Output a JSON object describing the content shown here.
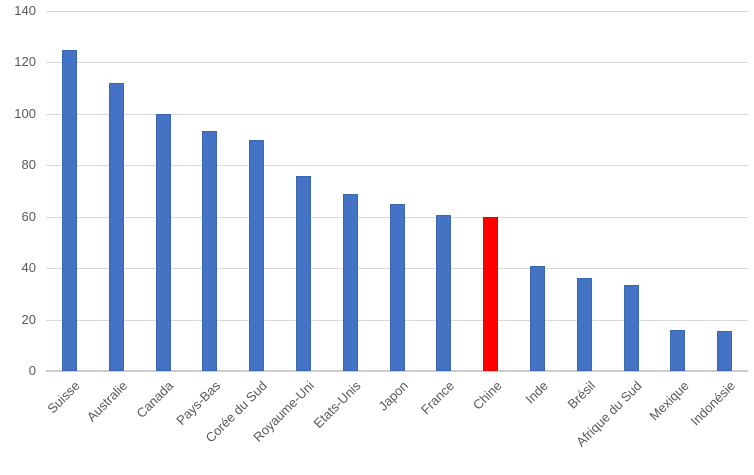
{
  "chart_data": {
    "type": "bar",
    "title": "",
    "xlabel": "",
    "ylabel": "",
    "categories": [
      "Suisse",
      "Australie",
      "Canada",
      "Pays-Bas",
      "Corée du Sud",
      "Royaume-Uni",
      "Etats-Unis",
      "Japon",
      "France",
      "Chine",
      "Inde",
      "Brésil",
      "Afrique du Sud",
      "Mexique",
      "Indonésie"
    ],
    "values": [
      125,
      112,
      100,
      93.5,
      90,
      76,
      69,
      65,
      60.5,
      60,
      41,
      36,
      33.5,
      16,
      15.5
    ],
    "highlight_category": "Chine",
    "highlight_index": 9,
    "ylim": [
      0,
      140
    ],
    "ytick_step": 20,
    "ytick_labels": [
      "0",
      "20",
      "40",
      "60",
      "80",
      "100",
      "120",
      "140"
    ],
    "grid": true,
    "legend_position": "none",
    "colors": {
      "bar_fill": "#4472c4",
      "bar_border": "#3b66b0",
      "highlight_fill": "#ff0000",
      "highlight_border": "#f00000",
      "gridline": "#d9d9d9",
      "axis_line": "#cecccc",
      "tick_label": "#595959"
    }
  }
}
